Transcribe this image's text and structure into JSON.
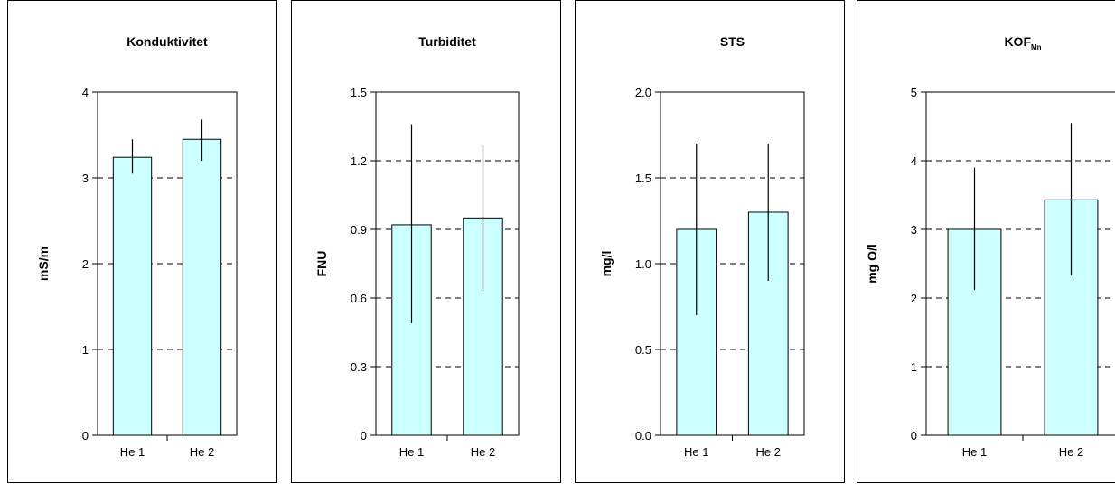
{
  "chart_data": [
    {
      "type": "bar",
      "title": "Konduktivitet",
      "ylabel": "mS/m",
      "categories": [
        "He 1",
        "He 2"
      ],
      "values": [
        3.24,
        3.45
      ],
      "error_low": [
        3.05,
        3.2
      ],
      "error_high": [
        3.45,
        3.68
      ],
      "ylim": [
        0,
        4
      ],
      "yticks": [
        "0",
        "1",
        "2",
        "3",
        "4"
      ],
      "grid": "dashed horizontal",
      "bar_color": "#ccffff"
    },
    {
      "type": "bar",
      "title": "Turbiditet",
      "ylabel": "FNU",
      "categories": [
        "He 1",
        "He 2"
      ],
      "values": [
        0.92,
        0.95
      ],
      "error_low": [
        0.49,
        0.63
      ],
      "error_high": [
        1.36,
        1.27
      ],
      "ylim": [
        0,
        1.5
      ],
      "yticks": [
        "0",
        "0.3",
        "0.6",
        "0.9",
        "1.2",
        "1.5"
      ],
      "grid": "dashed horizontal",
      "bar_color": "#ccffff"
    },
    {
      "type": "bar",
      "title": "STS",
      "ylabel": "mg/l",
      "categories": [
        "He 1",
        "He 2"
      ],
      "values": [
        1.2,
        1.3
      ],
      "error_low": [
        0.7,
        0.9
      ],
      "error_high": [
        1.7,
        1.7
      ],
      "ylim": [
        0,
        2
      ],
      "yticks": [
        "0.0",
        "0.5",
        "1.0",
        "1.5",
        "2.0"
      ],
      "grid": "dashed horizontal",
      "bar_color": "#ccffff"
    },
    {
      "type": "bar",
      "title": "KOF",
      "title_subscript": "Mn",
      "ylabel": "mg O/l",
      "categories": [
        "He 1",
        "He 2"
      ],
      "values": [
        3.0,
        3.43
      ],
      "error_low": [
        2.12,
        2.33
      ],
      "error_high": [
        3.9,
        4.55
      ],
      "ylim": [
        0,
        5
      ],
      "yticks": [
        "0",
        "1",
        "2",
        "3",
        "4",
        "5"
      ],
      "grid": "dashed horizontal",
      "bar_color": "#ccffff"
    }
  ]
}
